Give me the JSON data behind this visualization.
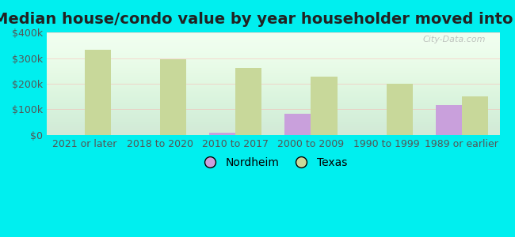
{
  "title": "Median house/condo value by year householder moved into unit",
  "categories": [
    "2021 or later",
    "2018 to 2020",
    "2010 to 2017",
    "2000 to 2009",
    "1990 to 1999",
    "1989 or earlier"
  ],
  "nordheim_values": [
    0,
    0,
    10000,
    82000,
    0,
    118000
  ],
  "texas_values": [
    332000,
    296000,
    263000,
    228000,
    200000,
    152000
  ],
  "nordheim_color": "#c9a0dc",
  "texas_color": "#c8d89a",
  "background_outer": "#00efef",
  "background_inner": "#f0fff0",
  "ylim": [
    0,
    400000
  ],
  "yticks": [
    0,
    100000,
    200000,
    300000,
    400000
  ],
  "ytick_labels": [
    "$0",
    "$100k",
    "$200k",
    "$300k",
    "$400k"
  ],
  "bar_width": 0.35,
  "legend_labels": [
    "Nordheim",
    "Texas"
  ],
  "watermark": "City-Data.com",
  "title_fontsize": 14,
  "tick_fontsize": 9,
  "legend_fontsize": 10
}
